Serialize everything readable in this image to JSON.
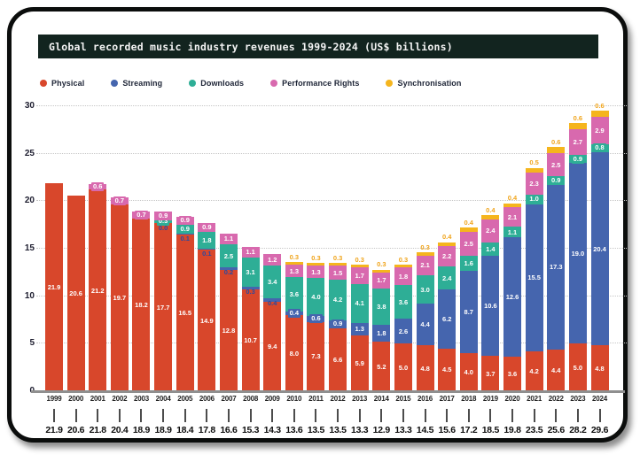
{
  "chart_data": {
    "type": "bar",
    "stacked": true,
    "title": "Global recorded music industry revenues 1999-2024 (US$ billions)",
    "ylim": [
      0,
      30
    ],
    "yticks": [
      0,
      5,
      10,
      15,
      20,
      25,
      30
    ],
    "grid": "horizontal-dotted",
    "legend_position": "top",
    "categories": [
      1999,
      2000,
      2001,
      2002,
      2003,
      2004,
      2005,
      2006,
      2007,
      2008,
      2009,
      2010,
      2011,
      2012,
      2013,
      2014,
      2015,
      2016,
      2017,
      2018,
      2019,
      2020,
      2021,
      2022,
      2023,
      2024
    ],
    "series": [
      {
        "key": "physical",
        "name": "Physical",
        "color": "#d8472b",
        "values": [
          21.9,
          20.6,
          21.2,
          19.7,
          18.2,
          17.7,
          16.5,
          14.9,
          12.8,
          10.7,
          9.4,
          8.0,
          7.3,
          6.6,
          5.9,
          5.2,
          5.0,
          4.8,
          4.5,
          4.0,
          3.7,
          3.6,
          4.2,
          4.4,
          5.0,
          4.8
        ]
      },
      {
        "key": "streaming",
        "name": "Streaming",
        "color": "#4565ae",
        "values": [
          null,
          null,
          null,
          null,
          null,
          0.0,
          0.1,
          0.1,
          0.2,
          0.3,
          0.4,
          0.4,
          0.6,
          0.9,
          1.3,
          1.8,
          2.6,
          4.4,
          6.2,
          8.7,
          10.6,
          12.6,
          15.5,
          17.3,
          19.0,
          20.4
        ]
      },
      {
        "key": "downloads",
        "name": "Downloads",
        "color": "#2eae96",
        "values": [
          null,
          null,
          null,
          null,
          null,
          0.3,
          0.9,
          1.8,
          2.5,
          3.1,
          3.4,
          3.6,
          4.0,
          4.2,
          4.1,
          3.8,
          3.6,
          3.0,
          2.4,
          1.6,
          1.4,
          1.1,
          1.0,
          0.9,
          0.9,
          0.8
        ]
      },
      {
        "key": "performance_rights",
        "name": "Performance Rights",
        "color": "#d869ae",
        "values": [
          null,
          null,
          0.6,
          0.7,
          0.7,
          0.9,
          0.9,
          0.9,
          1.1,
          1.1,
          1.2,
          1.3,
          1.3,
          1.5,
          1.7,
          1.7,
          1.8,
          2.1,
          2.2,
          2.5,
          2.4,
          2.1,
          2.3,
          2.5,
          2.7,
          2.9
        ]
      },
      {
        "key": "synchronisation",
        "name": "Synchronisation",
        "color": "#f5b51d",
        "values": [
          null,
          null,
          null,
          null,
          null,
          null,
          null,
          null,
          null,
          null,
          null,
          0.3,
          0.3,
          0.3,
          0.3,
          0.3,
          0.3,
          0.3,
          0.4,
          0.4,
          0.4,
          0.4,
          0.5,
          0.6,
          0.6,
          0.6
        ]
      }
    ],
    "totals": [
      21.9,
      20.6,
      21.8,
      20.4,
      18.9,
      18.9,
      18.4,
      17.8,
      16.6,
      15.3,
      14.3,
      13.6,
      13.5,
      13.5,
      13.3,
      12.9,
      13.3,
      14.5,
      15.6,
      17.2,
      18.5,
      19.8,
      23.5,
      25.6,
      28.2,
      29.6
    ]
  }
}
